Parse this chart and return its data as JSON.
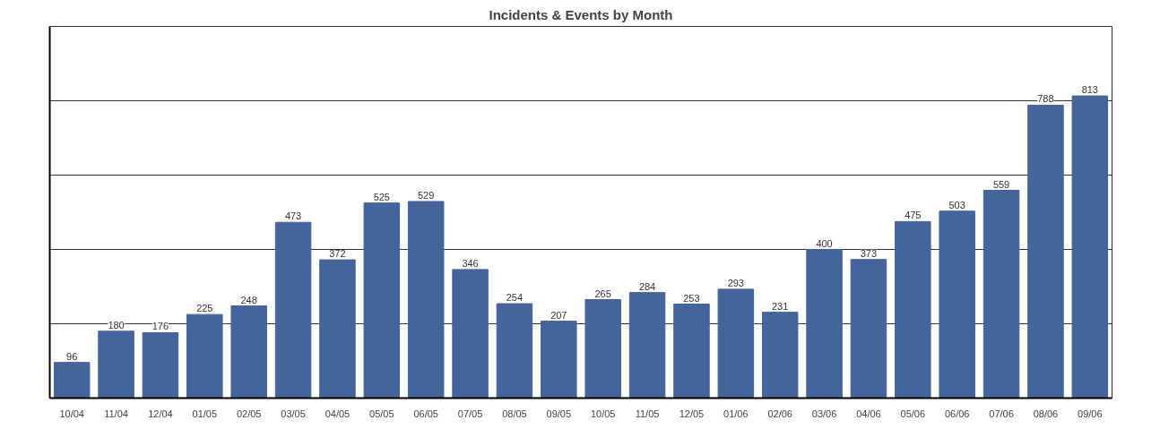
{
  "chart_data": {
    "type": "bar",
    "title": "Incidents & Events by Month",
    "categories": [
      "10/04",
      "11/04",
      "12/04",
      "01/05",
      "02/05",
      "03/05",
      "04/05",
      "05/05",
      "06/05",
      "07/05",
      "08/05",
      "09/05",
      "10/05",
      "11/05",
      "12/05",
      "01/06",
      "02/06",
      "03/06",
      "04/06",
      "05/06",
      "06/06",
      "07/06",
      "08/06",
      "09/06"
    ],
    "values": [
      96,
      180,
      176,
      225,
      248,
      473,
      372,
      525,
      529,
      346,
      254,
      207,
      265,
      284,
      253,
      293,
      231,
      400,
      373,
      475,
      503,
      559,
      788,
      813
    ],
    "color": "#43659b",
    "ylim": [
      0,
      1000
    ],
    "yticks": [
      {
        "value": 200,
        "label": null
      },
      {
        "value": 400,
        "label": null
      },
      {
        "value": 600,
        "label": null
      },
      {
        "value": 800,
        "label": null
      }
    ],
    "tick_labels": "x",
    "grid": "y",
    "data_labels": true
  }
}
